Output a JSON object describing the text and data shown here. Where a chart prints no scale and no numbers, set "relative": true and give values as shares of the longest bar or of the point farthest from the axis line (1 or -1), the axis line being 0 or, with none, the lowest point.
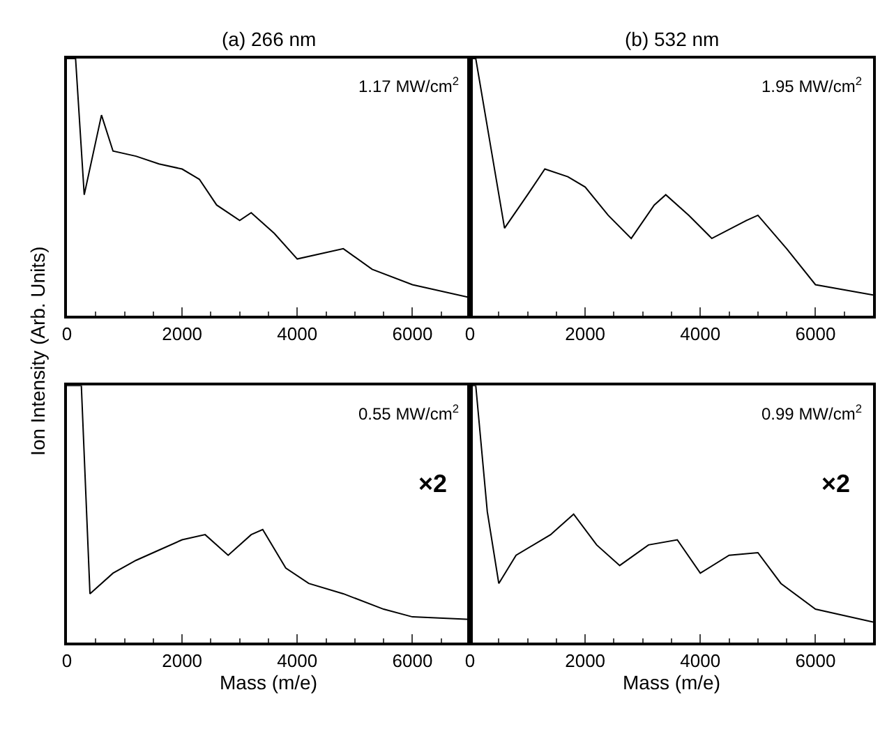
{
  "chart_data": [
    {
      "type": "line",
      "title": "(a) 266 nm",
      "ylabel": "Ion Intensity (Arb. Units)",
      "relative": true,
      "xlim": [
        0,
        7000
      ],
      "xticks": [
        0,
        2000,
        4000,
        6000
      ],
      "tick_labels": "x",
      "annotations": [
        "1.17 MW/cm$^{2}$"
      ],
      "x": [
        0,
        150,
        300,
        600,
        800,
        1200,
        1600,
        2000,
        2300,
        2600,
        3000,
        3200,
        3600,
        4000,
        4800,
        5300,
        6000,
        7000
      ],
      "series": [
        {
          "color": "#000000",
          "values": [
            1,
            1,
            0.47,
            0.78,
            0.64,
            0.62,
            0.59,
            0.57,
            0.53,
            0.43,
            0.37,
            0.4,
            0.32,
            0.22,
            0.26,
            0.18,
            0.12,
            0.07
          ]
        }
      ]
    },
    {
      "type": "line",
      "title": "(b) 532 nm",
      "relative": true,
      "xlim": [
        0,
        7000
      ],
      "xticks": [
        0,
        2000,
        4000,
        6000
      ],
      "tick_labels": "x",
      "annotations": [
        "1.95 MW/cm$^{2}$"
      ],
      "x": [
        0,
        100,
        380,
        600,
        1000,
        1300,
        1700,
        2000,
        2400,
        2800,
        3200,
        3400,
        3800,
        4200,
        4800,
        5000,
        5500,
        6000,
        7000
      ],
      "series": [
        {
          "color": "#000000",
          "values": [
            1,
            1,
            0.63,
            0.34,
            0.47,
            0.57,
            0.54,
            0.5,
            0.39,
            0.3,
            0.43,
            0.47,
            0.39,
            0.3,
            0.37,
            0.39,
            0.26,
            0.12,
            0.08
          ]
        }
      ]
    },
    {
      "type": "line",
      "xlabel": "Mass (m/e)",
      "relative": true,
      "xlim": [
        0,
        7000
      ],
      "xticks": [
        0,
        2000,
        4000,
        6000
      ],
      "tick_labels": "x",
      "annotations": [
        "0.55 MW/cm$^{2}$",
        "×2"
      ],
      "x": [
        0,
        250,
        400,
        800,
        1200,
        1600,
        2000,
        2400,
        2800,
        3200,
        3400,
        3800,
        4200,
        4800,
        5500,
        6000,
        7000
      ],
      "series": [
        {
          "color": "#000000",
          "values": [
            1,
            1,
            0.19,
            0.27,
            0.32,
            0.36,
            0.4,
            0.42,
            0.34,
            0.42,
            0.44,
            0.29,
            0.23,
            0.19,
            0.13,
            0.1,
            0.09
          ]
        }
      ]
    },
    {
      "type": "line",
      "xlabel": "Mass (m/e)",
      "relative": true,
      "xlim": [
        0,
        7000
      ],
      "xticks": [
        0,
        2000,
        4000,
        6000
      ],
      "tick_labels": "x",
      "annotations": [
        "0.99 MW/cm$^{2}$",
        "×2"
      ],
      "x": [
        0,
        100,
        300,
        500,
        800,
        1400,
        1800,
        2200,
        2600,
        3100,
        3600,
        4000,
        4500,
        5000,
        5400,
        6000,
        7000
      ],
      "series": [
        {
          "color": "#000000",
          "values": [
            1,
            1,
            0.51,
            0.23,
            0.34,
            0.42,
            0.5,
            0.38,
            0.3,
            0.38,
            0.4,
            0.27,
            0.34,
            0.35,
            0.23,
            0.13,
            0.08
          ]
        }
      ]
    }
  ]
}
